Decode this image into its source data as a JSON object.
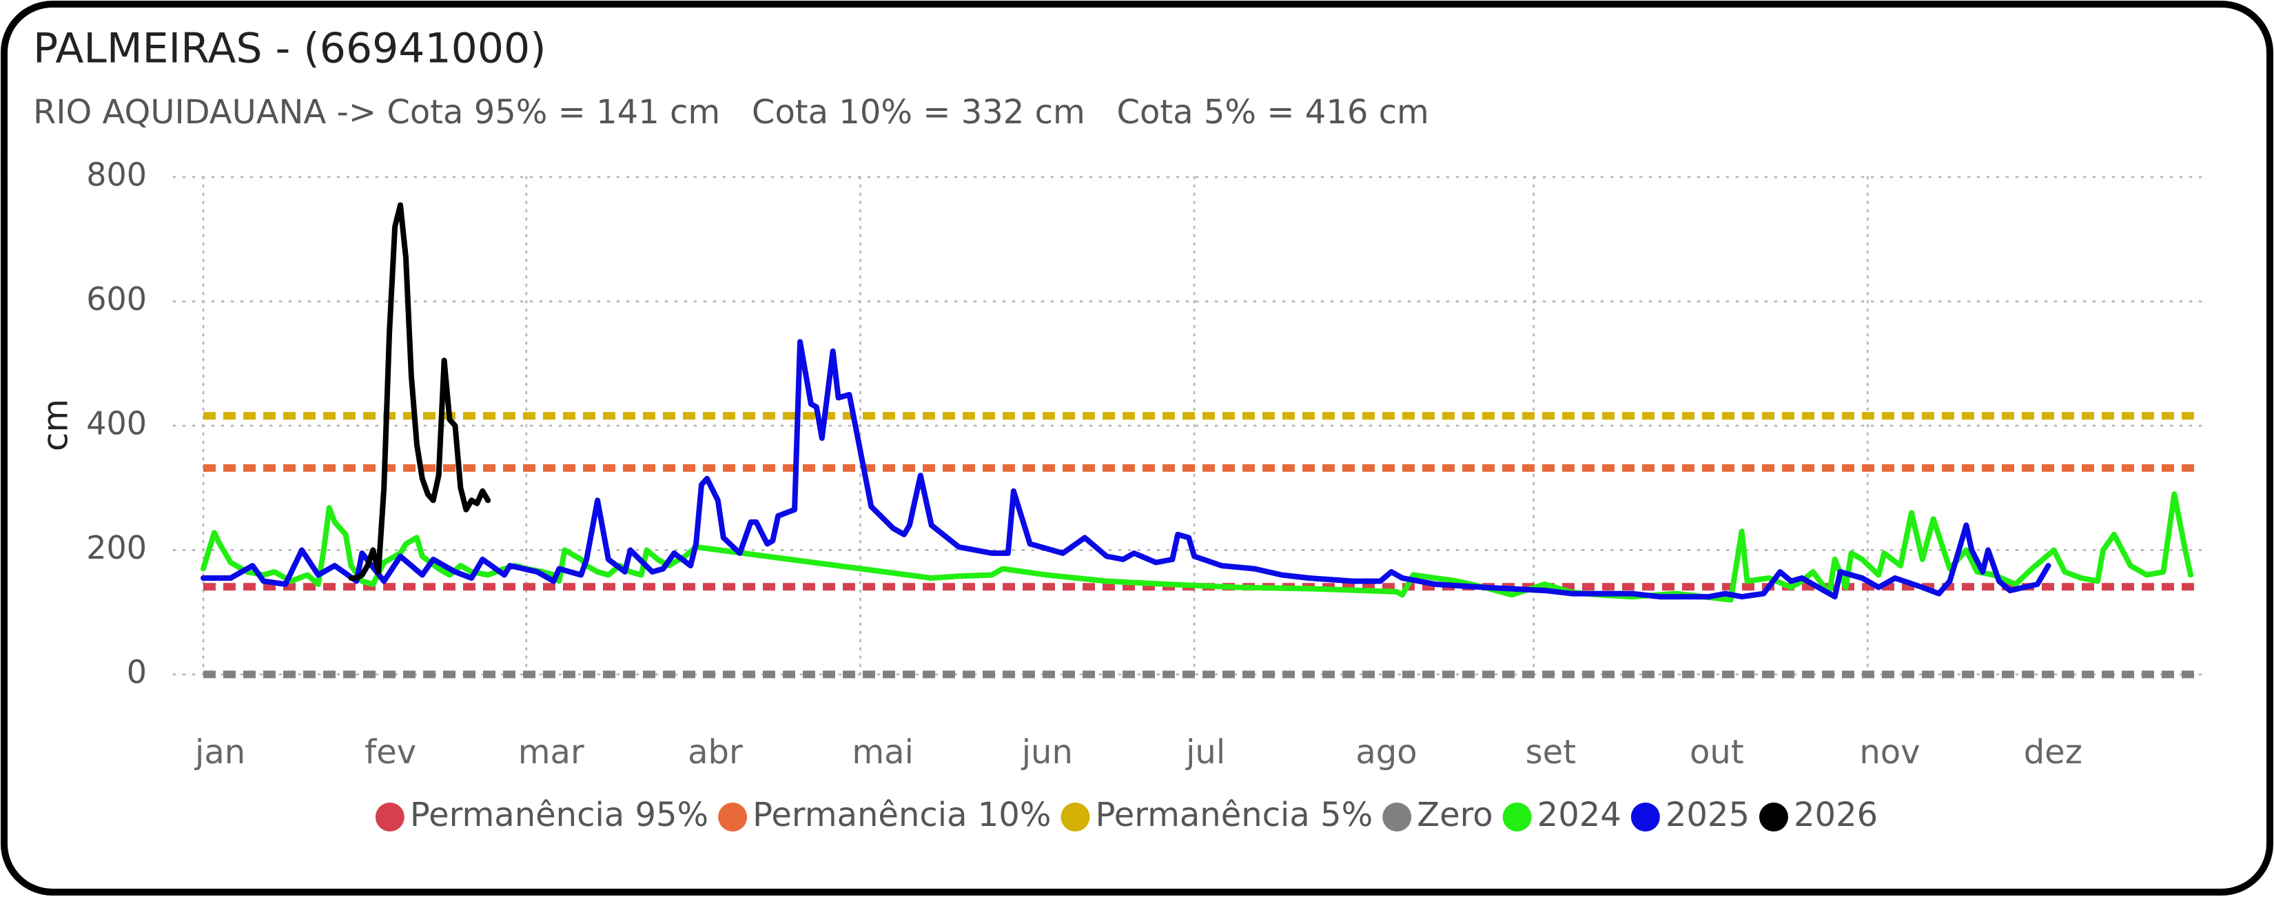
{
  "chart_data": {
    "type": "line",
    "title": "PALMEIRAS - (66941000)",
    "subtitle": "RIO AQUIDAUANA -> Cota 95% = 141 cm   Cota 10% = 332 cm   Cota 5% = 416 cm",
    "y_label": "cm",
    "xlim": [
      1,
      366
    ],
    "xticks": [
      {
        "value": 1,
        "label": "jan"
      },
      {
        "value": 32,
        "label": "fev"
      },
      {
        "value": 60,
        "label": "mar"
      },
      {
        "value": 91,
        "label": "abr"
      },
      {
        "value": 121,
        "label": "mai"
      },
      {
        "value": 152,
        "label": "jun"
      },
      {
        "value": 182,
        "label": "jul"
      },
      {
        "value": 213,
        "label": "ago"
      },
      {
        "value": 244,
        "label": "set"
      },
      {
        "value": 274,
        "label": "out"
      },
      {
        "value": 305,
        "label": "nov"
      },
      {
        "value": 335,
        "label": "dez"
      }
    ],
    "ylim": [
      0,
      800
    ],
    "yticks": [
      0,
      200,
      400,
      600,
      800
    ],
    "grid": true,
    "legend": "bottom",
    "series": [
      {
        "name": "Permanência 95%",
        "color": "#d6404e",
        "dashed": true,
        "x": [
          1,
          366
        ],
        "values": [
          141,
          141
        ]
      },
      {
        "name": "Permanência 10%",
        "color": "#e8693a",
        "dashed": true,
        "x": [
          1,
          366
        ],
        "values": [
          332,
          332
        ]
      },
      {
        "name": "Permanência 5%",
        "color": "#d4b106",
        "dashed": true,
        "x": [
          1,
          366
        ],
        "values": [
          416,
          416
        ]
      },
      {
        "name": "Zero",
        "color": "#808080",
        "dashed": true,
        "x": [
          1,
          366
        ],
        "values": [
          0,
          0
        ]
      },
      {
        "name": "2024",
        "color": "#22ee11",
        "dashed": false,
        "x": [
          1,
          3,
          4,
          6,
          9,
          12,
          14,
          17,
          20,
          22,
          23,
          24,
          25,
          27,
          28,
          30,
          32,
          34,
          37,
          38,
          40,
          41,
          44,
          46,
          48,
          50,
          53,
          56,
          58,
          60,
          63,
          65,
          66,
          67,
          70,
          71,
          73,
          75,
          77,
          79,
          81,
          82,
          84,
          86,
          87,
          89,
          91,
          134,
          139,
          145,
          147,
          155,
          166,
          177,
          190,
          203,
          219,
          220,
          222,
          226,
          230,
          235,
          240,
          246,
          251,
          256,
          262,
          270,
          278,
          280,
          282,
          283,
          287,
          291,
          293,
          295,
          298,
          299,
          301,
          302,
          304,
          307,
          308,
          311,
          313,
          315,
          317,
          320,
          323,
          325,
          328,
          332,
          335,
          339,
          341,
          344,
          347,
          348,
          350,
          353,
          356,
          359,
          361,
          363,
          364
        ],
        "values": [
          170,
          228,
          210,
          180,
          165,
          160,
          165,
          150,
          160,
          145,
          200,
          268,
          245,
          225,
          175,
          150,
          145,
          180,
          195,
          210,
          220,
          190,
          170,
          160,
          175,
          165,
          160,
          170,
          175,
          170,
          165,
          160,
          150,
          200,
          185,
          175,
          165,
          160,
          175,
          165,
          160,
          200,
          185,
          175,
          180,
          190,
          205,
          155,
          158,
          160,
          170,
          160,
          150,
          145,
          140,
          138,
          133,
          128,
          160,
          155,
          150,
          140,
          128,
          145,
          132,
          128,
          125,
          130,
          122,
          120,
          230,
          150,
          155,
          140,
          150,
          165,
          130,
          185,
          140,
          195,
          185,
          160,
          195,
          175,
          260,
          185,
          250,
          170,
          200,
          165,
          160,
          145,
          170,
          200,
          165,
          155,
          150,
          200,
          225,
          175,
          160,
          165,
          290,
          200,
          160
        ]
      },
      {
        "name": "2025",
        "color": "#0a0ae6",
        "dashed": false,
        "x": [
          1,
          6,
          10,
          12,
          16,
          19,
          22,
          25,
          29,
          30,
          34,
          37,
          41,
          43,
          47,
          50,
          52,
          56,
          57,
          62,
          65,
          66,
          70,
          71,
          73,
          75,
          78,
          79,
          83,
          85,
          87,
          90,
          91,
          92,
          93,
          95,
          96,
          99,
          101,
          102,
          104,
          105,
          106,
          109,
          110,
          112,
          113,
          114,
          116,
          117,
          119,
          121,
          123,
          127,
          129,
          130,
          132,
          134,
          139,
          145,
          148,
          149,
          152,
          158,
          162,
          166,
          169,
          171,
          175,
          178,
          179,
          181,
          182,
          187,
          193,
          198,
          203,
          211,
          216,
          218,
          220,
          226,
          235,
          246,
          251,
          262,
          267,
          276,
          279,
          282,
          286,
          289,
          291,
          293,
          298,
          299,
          300,
          304,
          307,
          310,
          315,
          318,
          320,
          323,
          324,
          326,
          327,
          329,
          331,
          336,
          338
        ],
        "values": [
          155,
          155,
          175,
          150,
          145,
          200,
          160,
          175,
          150,
          195,
          150,
          190,
          160,
          185,
          165,
          155,
          185,
          160,
          175,
          165,
          150,
          170,
          160,
          185,
          280,
          185,
          165,
          200,
          165,
          170,
          195,
          175,
          210,
          305,
          315,
          280,
          220,
          195,
          245,
          245,
          210,
          215,
          255,
          265,
          535,
          435,
          430,
          380,
          520,
          445,
          450,
          360,
          270,
          235,
          225,
          240,
          320,
          240,
          205,
          195,
          195,
          295,
          210,
          195,
          220,
          190,
          185,
          195,
          180,
          185,
          225,
          220,
          190,
          175,
          170,
          160,
          155,
          150,
          150,
          165,
          155,
          145,
          140,
          135,
          130,
          130,
          125,
          125,
          130,
          125,
          130,
          165,
          150,
          155,
          130,
          125,
          165,
          155,
          140,
          155,
          140,
          130,
          150,
          240,
          200,
          165,
          200,
          150,
          135,
          145,
          175
        ]
      },
      {
        "name": "2026",
        "color": "#000000",
        "dashed": false,
        "x": [
          28,
          29,
          30,
          31,
          32,
          33,
          34,
          35,
          36,
          37,
          38,
          39,
          40,
          41,
          42,
          43,
          44,
          45,
          46,
          47,
          48,
          49,
          50,
          51,
          52,
          53
        ],
        "values": [
          155,
          155,
          160,
          175,
          200,
          165,
          300,
          550,
          720,
          755,
          670,
          480,
          370,
          315,
          290,
          280,
          320,
          505,
          410,
          400,
          300,
          265,
          280,
          275,
          295,
          280
        ]
      }
    ]
  }
}
